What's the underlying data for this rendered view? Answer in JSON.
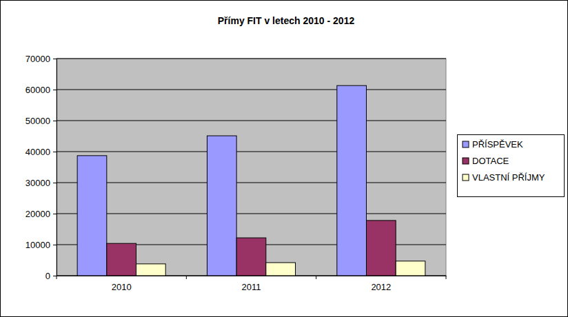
{
  "chart_data": {
    "type": "bar",
    "title": "Přímy FIT v letech 2010 - 2012",
    "categories": [
      "2010",
      "2011",
      "2012"
    ],
    "series": [
      {
        "name": "PŘÍSPĚVEK",
        "color": "#9999ff",
        "values": [
          38700,
          45100,
          61300
        ]
      },
      {
        "name": "DOTACE",
        "color": "#993366",
        "values": [
          10400,
          12200,
          17800
        ]
      },
      {
        "name": "VLASTNÍ PŘÍJMY",
        "color": "#ffffcc",
        "values": [
          3800,
          4200,
          4700
        ]
      }
    ],
    "ylim": [
      0,
      70000
    ],
    "yticks": [
      0,
      10000,
      20000,
      30000,
      40000,
      50000,
      60000,
      70000
    ],
    "grid": true,
    "legend": "right"
  }
}
